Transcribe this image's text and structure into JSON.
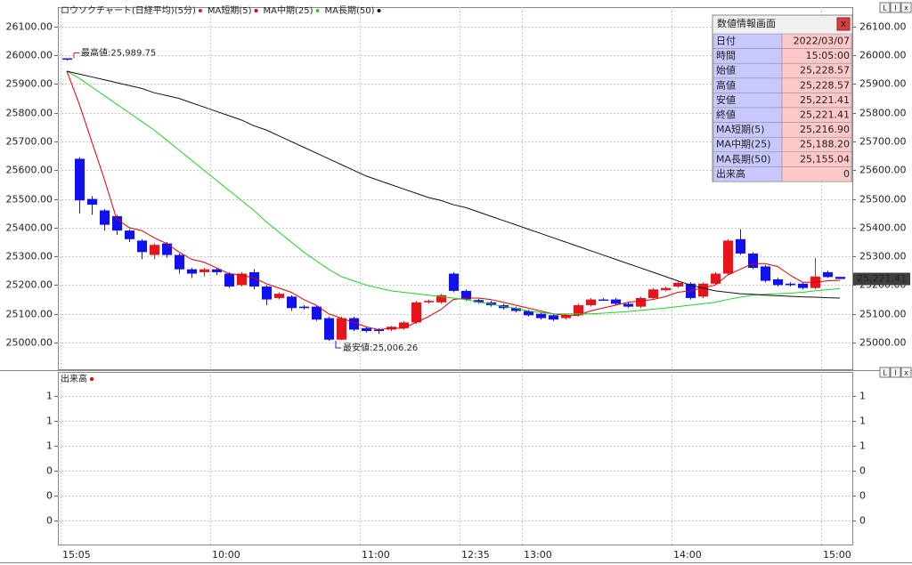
{
  "chart_data": [
    {
      "type": "candlestick",
      "title": "ロウソクチャート(日経平均)(5分)",
      "up_color": "#e8141c",
      "down_color": "#1010f0",
      "categories": [
        "15:05",
        null,
        null,
        null,
        null,
        null,
        null,
        null,
        null,
        null,
        null,
        null,
        "10:00",
        null,
        null,
        null,
        null,
        null,
        null,
        null,
        null,
        null,
        null,
        null,
        "11:00",
        null,
        null,
        null,
        null,
        null,
        null,
        null,
        "12:35",
        null,
        null,
        null,
        null,
        "13:00",
        null,
        null,
        null,
        null,
        null,
        null,
        null,
        null,
        null,
        null,
        null,
        "14:00",
        null,
        null,
        null,
        null,
        null,
        null,
        null,
        null,
        null,
        null,
        null,
        "15:00",
        null
      ],
      "open": [
        25989.75,
        25640,
        25500,
        25460,
        25440,
        25390,
        25355,
        25305,
        25345,
        25305,
        25255,
        25245,
        25255,
        25240,
        25200,
        25245,
        25195,
        25155,
        25160,
        25125,
        25125,
        25085,
        25010,
        25085,
        25050,
        25045,
        25045,
        25050,
        25070,
        25140,
        25140,
        25240,
        25180,
        25148,
        25140,
        25130,
        25120,
        25110,
        25100,
        25095,
        25085,
        25095,
        25130,
        25150,
        25150,
        25135,
        25125,
        25155,
        25182,
        25195,
        25205,
        25160,
        25205,
        25240,
        25360,
        25310,
        25265,
        25220,
        25205,
        25205,
        25190,
        25245,
        25228.57
      ],
      "high": [
        25989.75,
        25645,
        25510,
        25465,
        25445,
        25395,
        25360,
        25345,
        25350,
        25310,
        25260,
        25260,
        25260,
        25245,
        25245,
        25255,
        25200,
        25175,
        25165,
        25130,
        25130,
        25090,
        25090,
        25090,
        25055,
        25050,
        25058,
        25075,
        25145,
        25150,
        25170,
        25245,
        25185,
        25152,
        25145,
        25135,
        25125,
        25115,
        25105,
        25098,
        25100,
        25135,
        25155,
        25155,
        25155,
        25140,
        25160,
        25190,
        25195,
        25212,
        25210,
        25210,
        25245,
        25360,
        25395,
        25315,
        25270,
        25225,
        25210,
        25208,
        25295,
        25250,
        25228.57
      ],
      "low": [
        25982,
        25450,
        25445,
        25390,
        25375,
        25350,
        25290,
        25290,
        25295,
        25240,
        25225,
        25230,
        25235,
        25190,
        25195,
        25185,
        25130,
        25150,
        25110,
        25115,
        25075,
        25006.26,
        25008,
        25040,
        25035,
        25030,
        25040,
        25045,
        25065,
        25135,
        25135,
        25175,
        25145,
        25135,
        25125,
        25115,
        25105,
        25090,
        25080,
        25075,
        25080,
        25090,
        25125,
        25145,
        25130,
        25120,
        25120,
        25150,
        25178,
        25190,
        25150,
        25155,
        25200,
        25235,
        25305,
        25255,
        25210,
        25195,
        25195,
        25185,
        25185,
        25225,
        25221.41
      ],
      "close": [
        25985,
        25495,
        25480,
        25410,
        25390,
        25360,
        25315,
        25340,
        25305,
        25255,
        25240,
        25255,
        25245,
        25195,
        25240,
        25195,
        25150,
        25170,
        25120,
        25120,
        25080,
        25010,
        25085,
        25045,
        25040,
        25040,
        25055,
        25070,
        25140,
        25145,
        25165,
        25180,
        25150,
        25140,
        25130,
        25120,
        25110,
        25095,
        25085,
        25080,
        25095,
        25130,
        25150,
        25150,
        25135,
        25125,
        25155,
        25185,
        25190,
        25208,
        25155,
        25205,
        25240,
        25355,
        25310,
        25260,
        25215,
        25200,
        25200,
        25190,
        25230,
        25228,
        25221.41
      ],
      "series": [
        {
          "name": "MA短期(5)",
          "color": "#e00000",
          "values": [
            25945,
            25830,
            25700,
            25570,
            25430,
            25400,
            25390,
            25365,
            25345,
            25315,
            25290,
            25280,
            25260,
            25240,
            25235,
            25225,
            25205,
            25190,
            25175,
            25150,
            25130,
            25100,
            25085,
            25070,
            25055,
            25045,
            25050,
            25050,
            25070,
            25090,
            25115,
            25150,
            25155,
            25155,
            25150,
            25140,
            25130,
            25120,
            25110,
            25100,
            25095,
            25095,
            25110,
            25120,
            25130,
            25140,
            25145,
            25150,
            25160,
            25175,
            25180,
            25190,
            25200,
            25235,
            25255,
            25275,
            25275,
            25265,
            25235,
            25210,
            25210,
            25215,
            25216.9
          ]
        },
        {
          "name": "MA中期(25)",
          "color": "#22d022",
          "values": [
            25945,
            25920,
            25890,
            25860,
            25830,
            25800,
            25770,
            25740,
            25705,
            25670,
            25635,
            25600,
            25565,
            25530,
            25495,
            25460,
            25420,
            25385,
            25350,
            25315,
            25285,
            25255,
            25230,
            25215,
            25200,
            25190,
            25180,
            25175,
            25170,
            25165,
            25160,
            25155,
            25150,
            25140,
            25135,
            25125,
            25120,
            25110,
            25105,
            25100,
            25100,
            25100,
            25100,
            25102,
            25105,
            25108,
            25112,
            25116,
            25120,
            25125,
            25130,
            25135,
            25140,
            25150,
            25158,
            25165,
            25168,
            25170,
            25172,
            25175,
            25180,
            25184,
            25188.2
          ]
        },
        {
          "name": "MA長期(50)",
          "color": "#111111",
          "values": [
            25945,
            25935,
            25925,
            25915,
            25905,
            25895,
            25885,
            25870,
            25860,
            25850,
            25835,
            25820,
            25805,
            25790,
            25775,
            25755,
            25740,
            25720,
            25700,
            25680,
            25660,
            25640,
            25620,
            25600,
            25580,
            25565,
            25550,
            25535,
            25520,
            25505,
            25495,
            25480,
            25470,
            25455,
            25440,
            25425,
            25410,
            25395,
            25380,
            25365,
            25350,
            25335,
            25320,
            25305,
            25290,
            25275,
            25260,
            25245,
            25230,
            25215,
            25200,
            25190,
            25180,
            25175,
            25170,
            25168,
            25165,
            25163,
            25161,
            25159,
            25158,
            25156,
            25155.04
          ]
        }
      ],
      "ylim": [
        24907,
        26168
      ],
      "yticks": [
        {
          "value": 25000,
          "label": "25000.00"
        },
        {
          "value": 25100,
          "label": "25100.00"
        },
        {
          "value": 25200,
          "label": "25200.00"
        },
        {
          "value": 25300,
          "label": "25300.00"
        },
        {
          "value": 25400,
          "label": "25400.00"
        },
        {
          "value": 25500,
          "label": "25500.00"
        },
        {
          "value": 25600,
          "label": "25600.00"
        },
        {
          "value": 25700,
          "label": "25700.00"
        },
        {
          "value": 25800,
          "label": "25800.00"
        },
        {
          "value": 25900,
          "label": "25900.00"
        },
        {
          "value": 26000,
          "label": "26000.00"
        },
        {
          "value": 26100,
          "label": "26100.00"
        }
      ],
      "grid": true,
      "annotations": [
        {
          "text": "最高値:25,989.75",
          "value": 25989.75,
          "color": "#e8141c",
          "side": "above"
        },
        {
          "text": "最安値:25,006.26",
          "value": 25006.26,
          "color": "#2020c0",
          "side": "below"
        }
      ],
      "last_label": {
        "value": 25221.41,
        "label": "25,221.41"
      }
    },
    {
      "type": "bar",
      "title": "出来高",
      "color": "#e00000",
      "ylim": [
        -0.19,
        1.19
      ],
      "yticks": [
        1,
        {
          "value": 0.8,
          "label": "1"
        },
        {
          "value": 0.6,
          "label": "1"
        },
        {
          "value": 0.4,
          "label": "0"
        },
        {
          "value": 0.2,
          "label": "0"
        },
        0
      ],
      "grid": true
    }
  ],
  "pane_buttons": [
    "L",
    "I",
    "x"
  ],
  "info_panel": {
    "title": "数値情報画面",
    "close": "x",
    "rows": [
      [
        "日付",
        "2022/03/07"
      ],
      [
        "時間",
        "15:05:00"
      ],
      [
        "始値",
        "25,228.57"
      ],
      [
        "高値",
        "25,228.57"
      ],
      [
        "安値",
        "25,221.41"
      ],
      [
        "終値",
        "25,221.41"
      ],
      [
        "MA短期(5)",
        "25,216.90"
      ],
      [
        "MA中期(25)",
        "25,188.20"
      ],
      [
        "MA長期(50)",
        "25,155.04"
      ],
      [
        "出来高",
        "0"
      ]
    ]
  }
}
